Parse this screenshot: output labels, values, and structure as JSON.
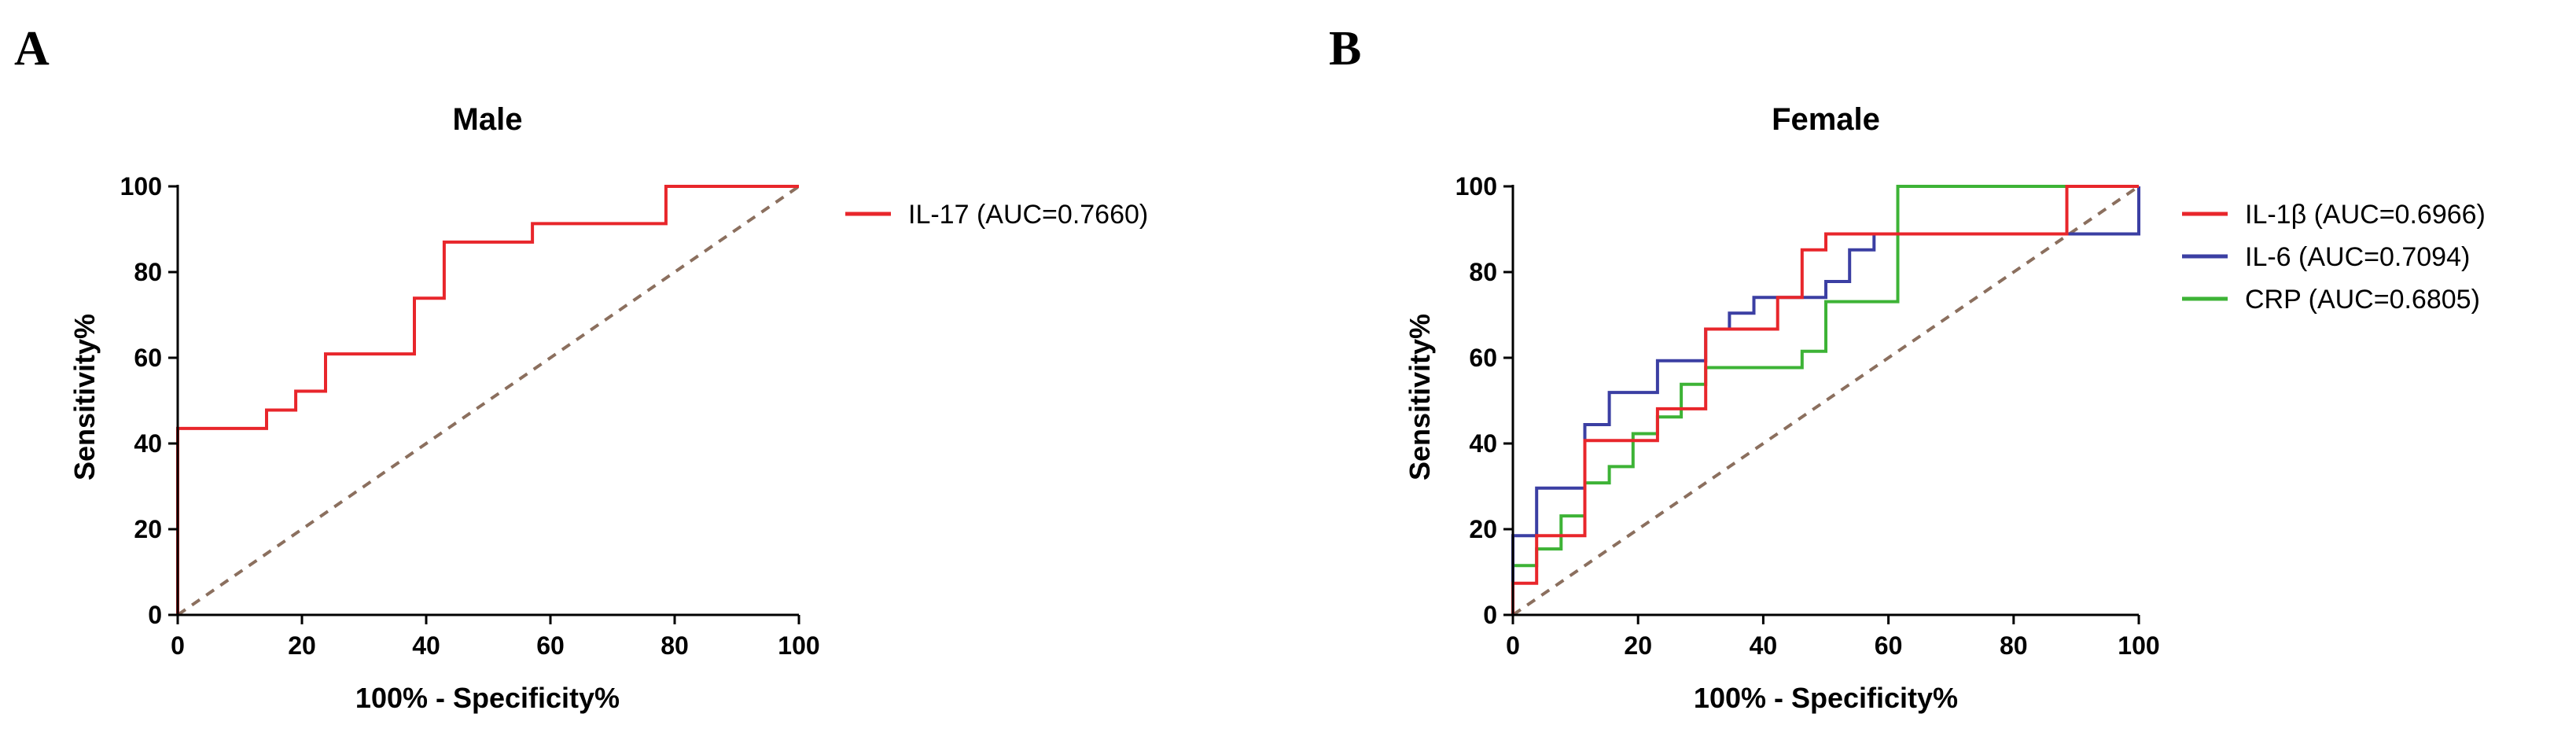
{
  "chart_data": [
    {
      "panel": "A",
      "type": "line",
      "step": true,
      "title": "Male",
      "xlabel": "100% - Specificity%",
      "ylabel": "Sensitivity%",
      "xlim": [
        0,
        100
      ],
      "ylim": [
        0,
        100
      ],
      "xticks": [
        "0",
        "20",
        "40",
        "60",
        "80",
        "100"
      ],
      "yticks": [
        "0",
        "20",
        "40",
        "60",
        "80",
        "100"
      ],
      "legend_position": "right",
      "reference_line": {
        "style": "dashed",
        "color": "#8B6F5E",
        "from": [
          0,
          0
        ],
        "to": [
          100,
          100
        ]
      },
      "series": [
        {
          "name": "IL-17",
          "auc_label": "(AUC=0.7660)",
          "color": "#E8262B",
          "points": [
            [
              0,
              0
            ],
            [
              0,
              43.5
            ],
            [
              14.3,
              43.5
            ],
            [
              14.3,
              47.8
            ],
            [
              19,
              47.8
            ],
            [
              19,
              52.2
            ],
            [
              23.8,
              52.2
            ],
            [
              23.8,
              60.9
            ],
            [
              38.1,
              60.9
            ],
            [
              38.1,
              73.9
            ],
            [
              42.9,
              73.9
            ],
            [
              42.9,
              87
            ],
            [
              57.1,
              87
            ],
            [
              57.1,
              91.3
            ],
            [
              78.6,
              91.3
            ],
            [
              78.6,
              100
            ],
            [
              100,
              100
            ]
          ]
        }
      ]
    },
    {
      "panel": "B",
      "type": "line",
      "step": true,
      "title": "Female",
      "xlabel": "100% - Specificity%",
      "ylabel": "Sensitivity%",
      "xlim": [
        0,
        100
      ],
      "ylim": [
        0,
        100
      ],
      "xticks": [
        "0",
        "20",
        "40",
        "60",
        "80",
        "100"
      ],
      "yticks": [
        "0",
        "20",
        "40",
        "60",
        "80",
        "100"
      ],
      "legend_position": "right",
      "reference_line": {
        "style": "dashed",
        "color": "#8B6F5E",
        "from": [
          0,
          0
        ],
        "to": [
          100,
          100
        ]
      },
      "series": [
        {
          "name": "CRP",
          "auc_label": "(AUC=0.6805)",
          "color": "#3DB336",
          "points": [
            [
              0,
              0
            ],
            [
              0,
              11.5
            ],
            [
              3.8,
              11.5
            ],
            [
              3.8,
              15.4
            ],
            [
              7.7,
              15.4
            ],
            [
              7.7,
              23.1
            ],
            [
              11.5,
              23.1
            ],
            [
              11.5,
              30.8
            ],
            [
              15.4,
              30.8
            ],
            [
              15.4,
              34.6
            ],
            [
              19.2,
              34.6
            ],
            [
              19.2,
              42.3
            ],
            [
              23.1,
              42.3
            ],
            [
              23.1,
              46.2
            ],
            [
              26.9,
              46.2
            ],
            [
              26.9,
              53.8
            ],
            [
              30.8,
              53.8
            ],
            [
              30.8,
              57.7
            ],
            [
              46.2,
              57.7
            ],
            [
              46.2,
              61.5
            ],
            [
              50,
              61.5
            ],
            [
              50,
              73.1
            ],
            [
              61.5,
              73.1
            ],
            [
              61.5,
              100
            ],
            [
              100,
              100
            ]
          ]
        },
        {
          "name": "IL-6",
          "auc_label": "(AUC=0.7094)",
          "color": "#3B3FA3",
          "points": [
            [
              0,
              0
            ],
            [
              0,
              18.5
            ],
            [
              3.8,
              18.5
            ],
            [
              3.8,
              29.6
            ],
            [
              11.5,
              29.6
            ],
            [
              11.5,
              44.4
            ],
            [
              15.4,
              44.4
            ],
            [
              15.4,
              51.9
            ],
            [
              23.1,
              51.9
            ],
            [
              23.1,
              59.3
            ],
            [
              30.8,
              59.3
            ],
            [
              30.8,
              66.7
            ],
            [
              34.6,
              66.7
            ],
            [
              34.6,
              70.4
            ],
            [
              38.5,
              70.4
            ],
            [
              38.5,
              74.1
            ],
            [
              50,
              74.1
            ],
            [
              50,
              77.8
            ],
            [
              53.8,
              77.8
            ],
            [
              53.8,
              85.2
            ],
            [
              57.7,
              85.2
            ],
            [
              57.7,
              88.9
            ],
            [
              100,
              88.9
            ],
            [
              100,
              100
            ]
          ]
        },
        {
          "name": "IL-1β",
          "auc_label": "(AUC=0.6966)",
          "color": "#E8262B",
          "points": [
            [
              0,
              0
            ],
            [
              0,
              7.4
            ],
            [
              3.8,
              7.4
            ],
            [
              3.8,
              18.5
            ],
            [
              11.5,
              18.5
            ],
            [
              11.5,
              40.7
            ],
            [
              23.1,
              40.7
            ],
            [
              23.1,
              48.1
            ],
            [
              30.8,
              48.1
            ],
            [
              30.8,
              66.7
            ],
            [
              42.3,
              66.7
            ],
            [
              42.3,
              74.1
            ],
            [
              46.2,
              74.1
            ],
            [
              46.2,
              85.2
            ],
            [
              50,
              85.2
            ],
            [
              50,
              88.9
            ],
            [
              88.5,
              88.9
            ],
            [
              88.5,
              100
            ],
            [
              100,
              100
            ]
          ]
        }
      ],
      "legend_order": [
        "IL-1β",
        "IL-6",
        "CRP"
      ]
    }
  ]
}
